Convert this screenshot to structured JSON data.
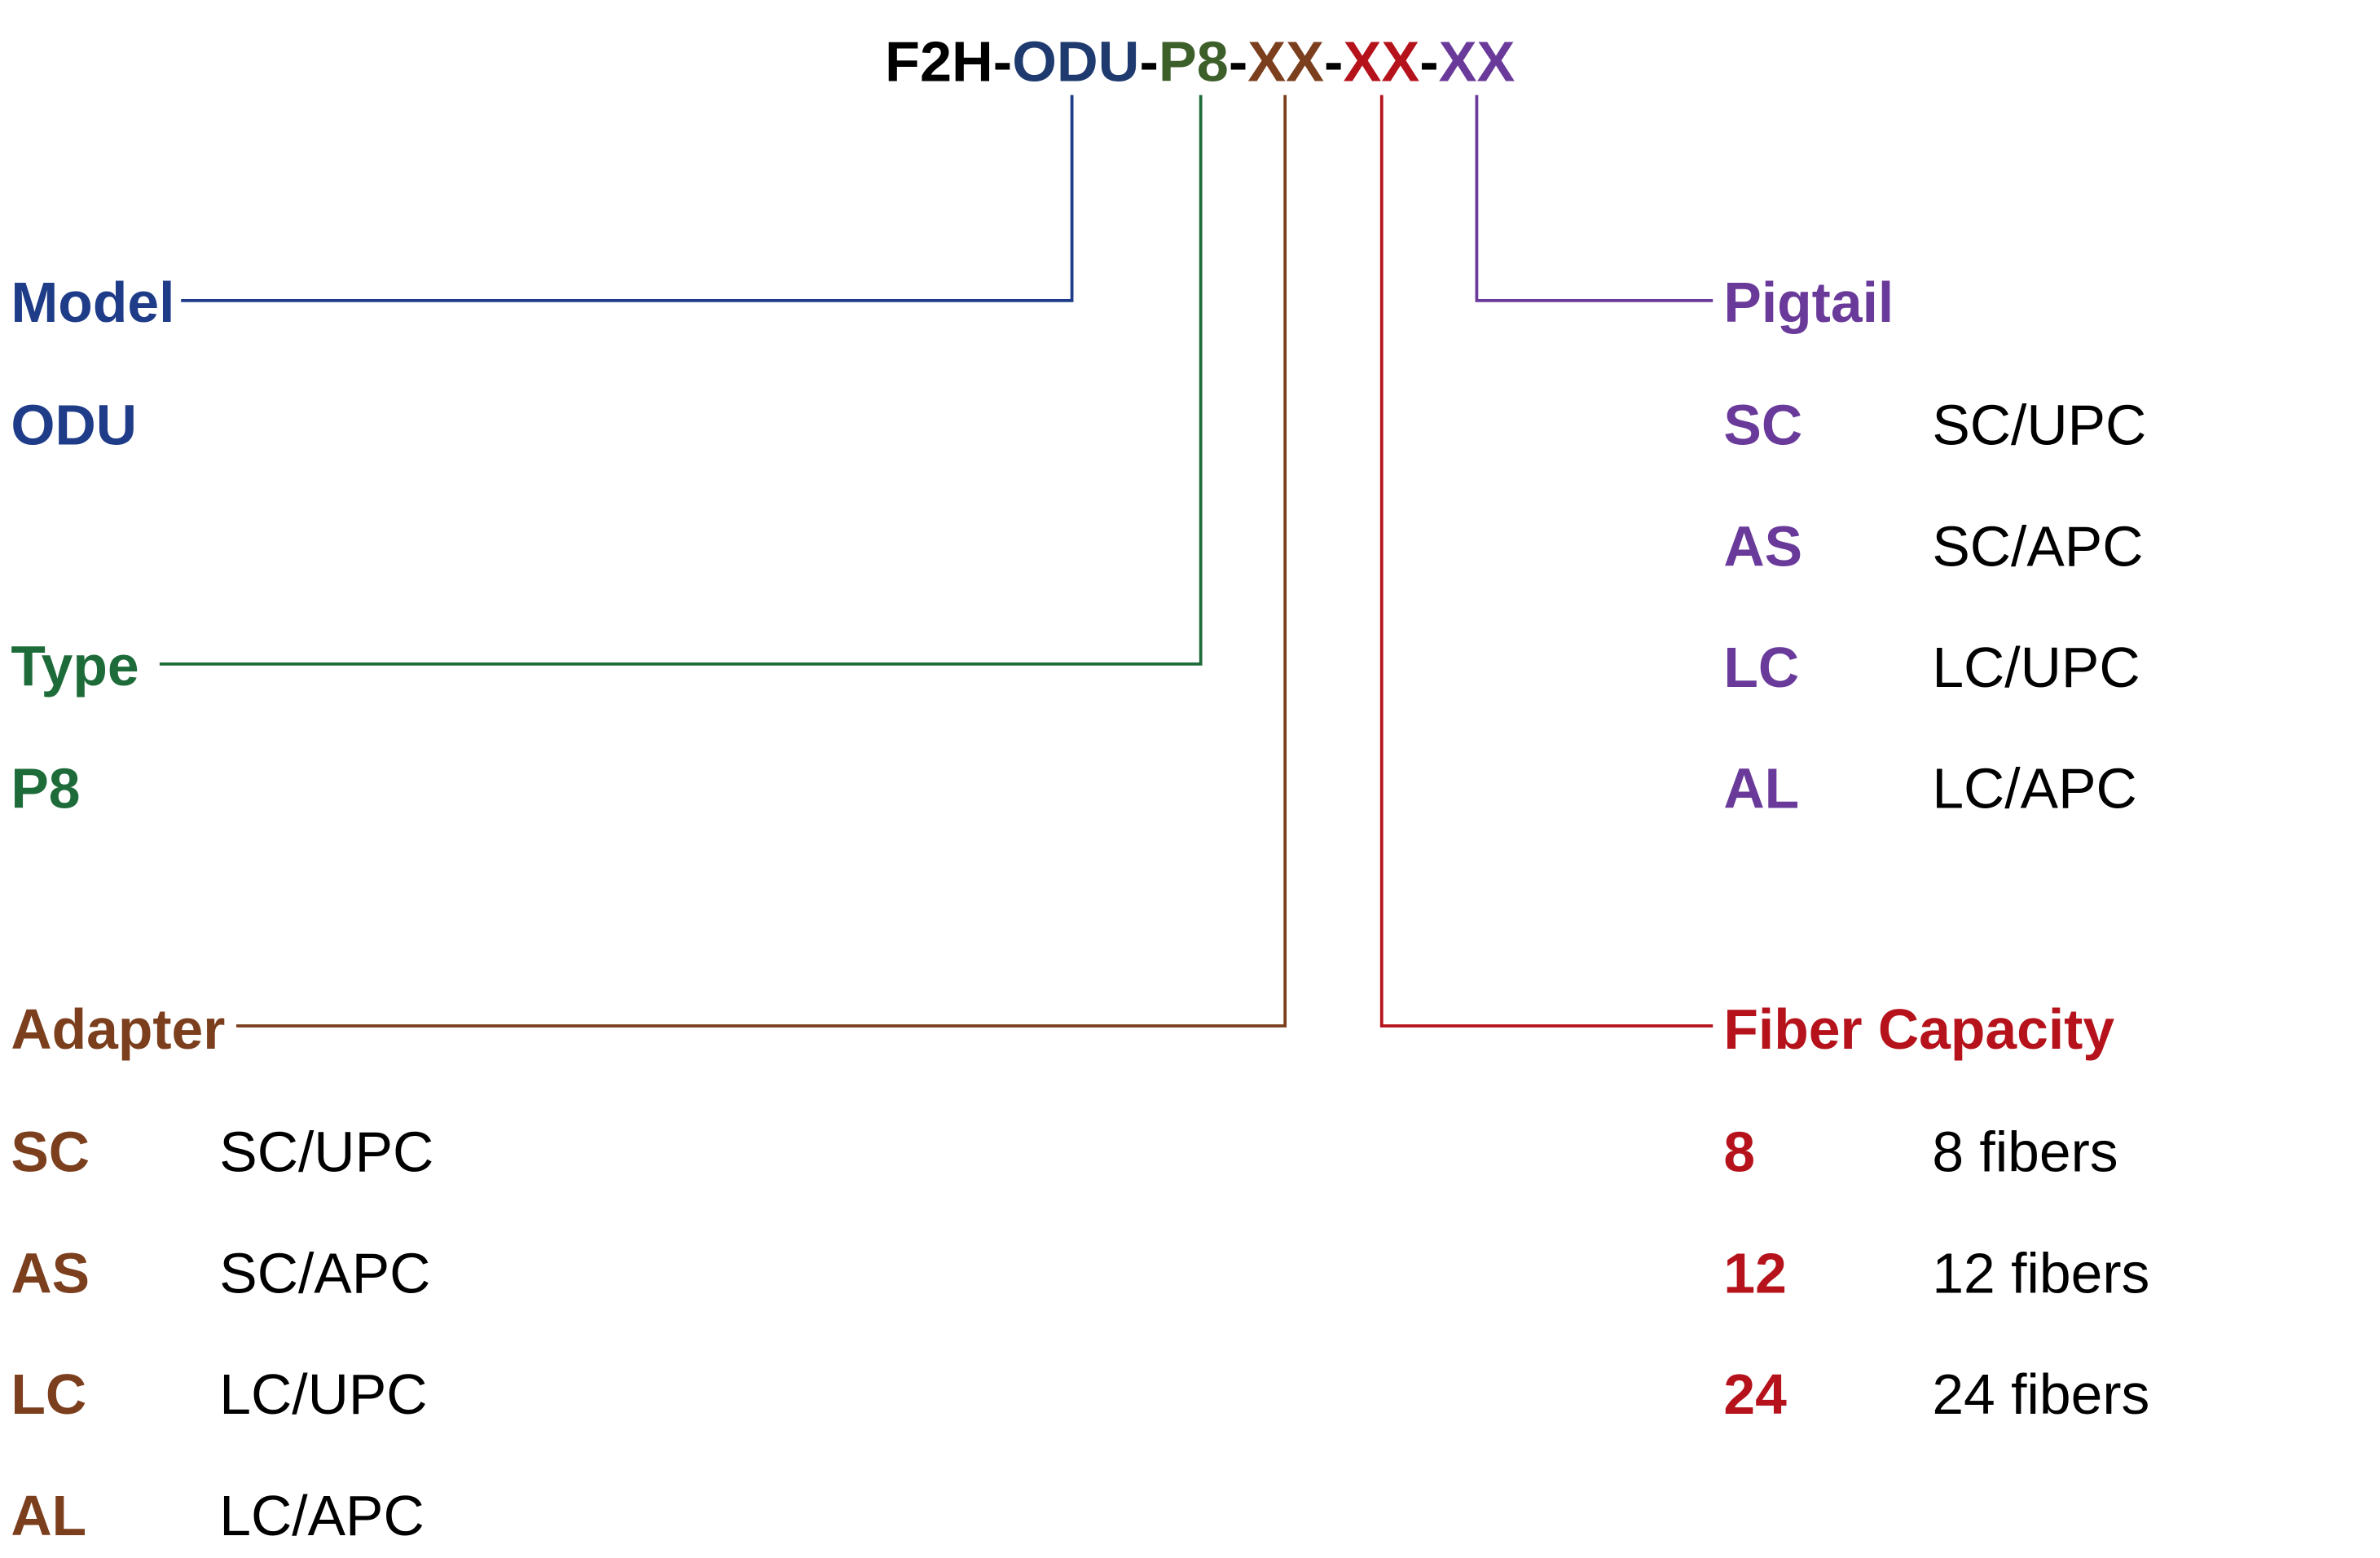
{
  "code": {
    "parts": [
      "F2H",
      "ODU",
      "P8",
      "XX",
      "XX",
      "XX"
    ],
    "separator": "-"
  },
  "model": {
    "title": "Model",
    "options": [
      {
        "code": "ODU"
      }
    ]
  },
  "type": {
    "title": "Type",
    "options": [
      {
        "code": "P8"
      }
    ]
  },
  "adapter": {
    "title": "Adapter",
    "options": [
      {
        "code": "SC",
        "description": "SC/UPC"
      },
      {
        "code": "AS",
        "description": "SC/APC"
      },
      {
        "code": "LC",
        "description": "LC/UPC"
      },
      {
        "code": "AL",
        "description": "LC/APC"
      }
    ]
  },
  "fiber_capacity": {
    "title": "Fiber Capacity",
    "options": [
      {
        "code": "8",
        "description": "8 fibers"
      },
      {
        "code": "12",
        "description": "12 fibers"
      },
      {
        "code": "24",
        "description": "24 fibers"
      }
    ]
  },
  "pigtail": {
    "title": "Pigtail",
    "options": [
      {
        "code": "SC",
        "description": "SC/UPC"
      },
      {
        "code": "AS",
        "description": "SC/APC"
      },
      {
        "code": "LC",
        "description": "LC/UPC"
      },
      {
        "code": "AL",
        "description": "LC/APC"
      }
    ]
  }
}
